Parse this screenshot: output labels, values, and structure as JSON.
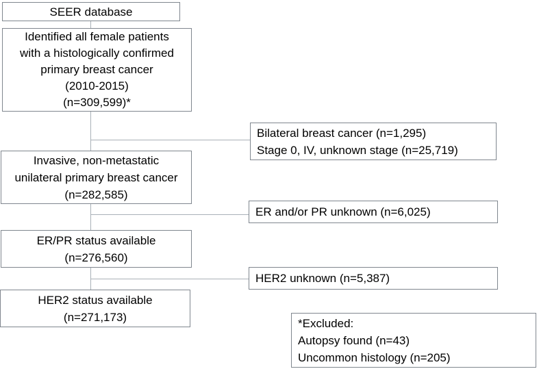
{
  "flow": {
    "main": [
      {
        "id": "seer-database",
        "label": "SEER database"
      },
      {
        "id": "identified-patients",
        "label": "Identified all female patients\nwith a histologically confirmed\nprimary breast cancer\n(2010-2015)\n(n=309,599)*"
      },
      {
        "id": "invasive-nonmetastatic",
        "label": "Invasive, non-metastatic\nunilateral primary breast cancer\n(n=282,585)"
      },
      {
        "id": "erpr-status-available",
        "label": "ER/PR status available\n(n=276,560)"
      },
      {
        "id": "her2-status-available",
        "label": "HER2 status available\n(n=271,173)"
      }
    ],
    "exclusions": [
      {
        "id": "bilateral-and-stage",
        "label": "Bilateral breast cancer (n=1,295)\nStage 0, IV, unknown stage (n=25,719)"
      },
      {
        "id": "er-pr-unknown",
        "label": "ER and/or PR unknown (n=6,025)"
      },
      {
        "id": "her2-unknown",
        "label": "HER2 unknown (n=5,387)"
      }
    ],
    "footnote": {
      "id": "excluded-note",
      "label": "*Excluded:\nAutopsy found (n=43)\nUncommon histology (n=205)"
    },
    "colors": {
      "background": "#ffffff",
      "box_border": "#7f868e",
      "connector": "#a9b0b7",
      "text": "#000000"
    }
  }
}
